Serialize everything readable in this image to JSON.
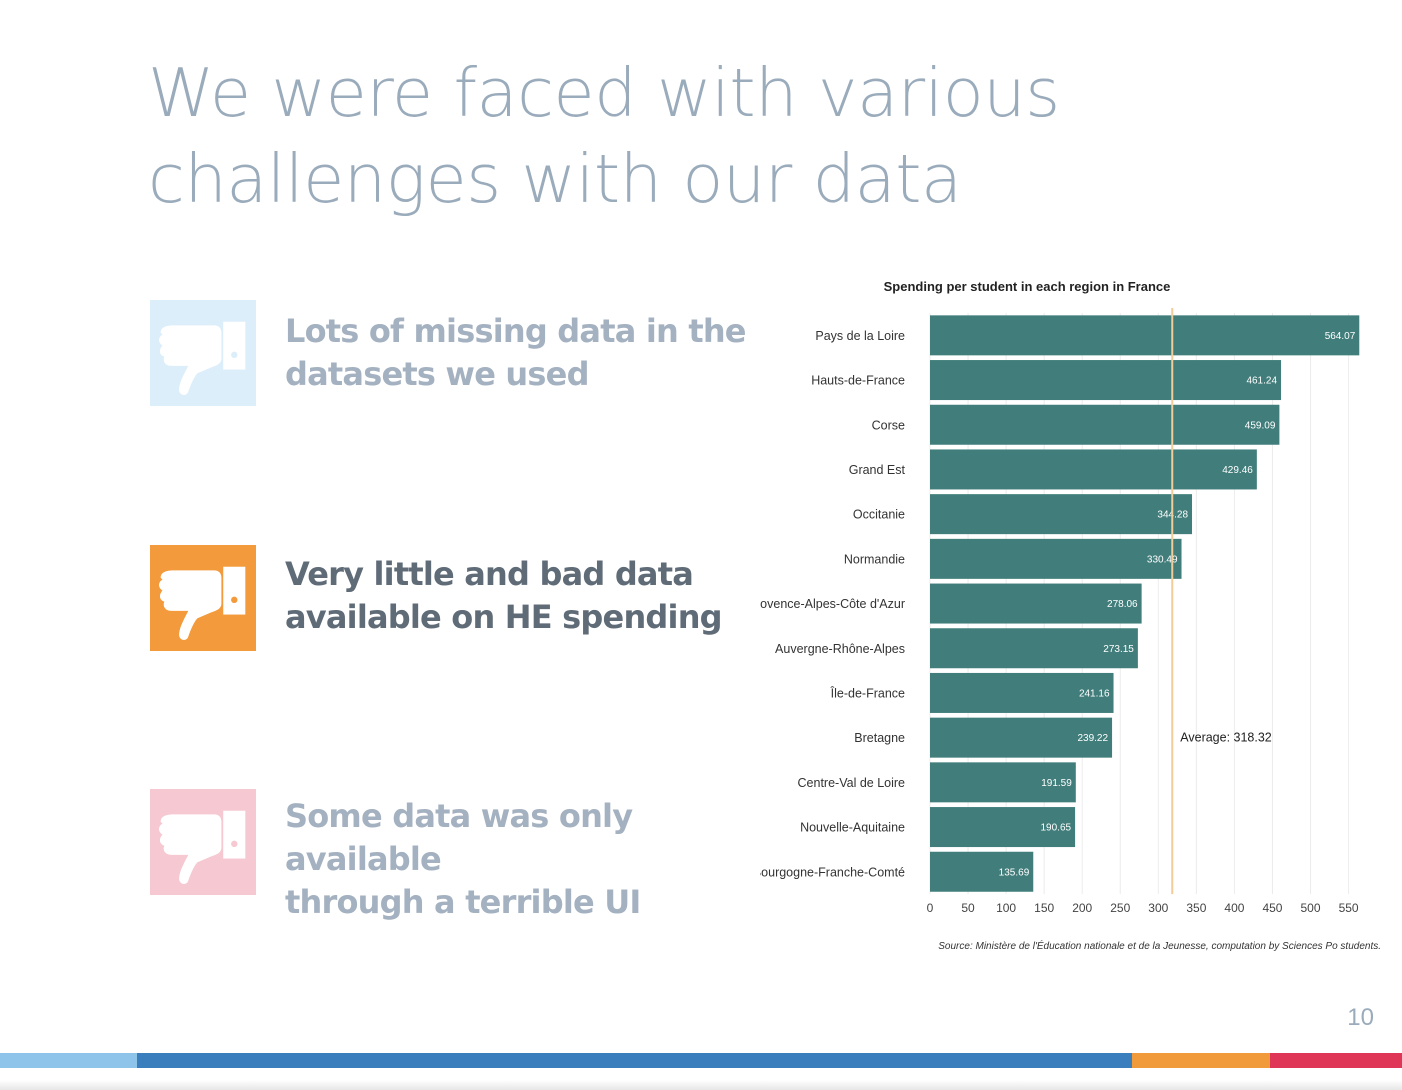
{
  "slide": {
    "title_line1": "We were faced with various",
    "title_line2": "challenges with our data",
    "page_number": "10"
  },
  "points": [
    {
      "text_line1": "Lots of missing data in the",
      "text_line2": "datasets we used",
      "icon": "thumbs-down-icon",
      "box_color": "#ddeefb",
      "text_color": "#a4b1c0"
    },
    {
      "text_line1": "Very little and bad data",
      "text_line2": "available on HE spending",
      "icon": "thumbs-down-icon",
      "box_color": "#f29a3c",
      "text_color": "#5f6b77"
    },
    {
      "text_line1": "Some data was only available",
      "text_line2": "through a terrible UI",
      "icon": "thumbs-down-icon",
      "box_color": "#f6c9d2",
      "text_color": "#a4b1c0"
    }
  ],
  "chart_data": {
    "type": "bar",
    "orientation": "horizontal",
    "title": "Spending per student in each region in France",
    "categories": [
      "Pays de la Loire",
      "Hauts-de-France",
      "Corse",
      "Grand Est",
      "Occitanie",
      "Normandie",
      "Provence-Alpes-Côte d'Azur",
      "Auvergne-Rhône-Alpes",
      "Île-de-France",
      "Bretagne",
      "Centre-Val de Loire",
      "Nouvelle-Aquitaine",
      "Bourgogne-Franche-Comté"
    ],
    "values": [
      564.07,
      461.24,
      459.09,
      429.46,
      344.28,
      330.49,
      278.06,
      273.15,
      241.16,
      239.22,
      191.59,
      190.65,
      135.69
    ],
    "value_labels": [
      "564.07",
      "461.24",
      "459.09",
      "429.46",
      "344.28",
      "330.49",
      "278.06",
      "273.15",
      "241.16",
      "239.22",
      "191.59",
      "190.65",
      "135.69"
    ],
    "xticks": [
      "0",
      "50",
      "100",
      "150",
      "200",
      "250",
      "300",
      "350",
      "400",
      "450",
      "500",
      "550"
    ],
    "xlim": [
      0,
      565
    ],
    "average": 318.32,
    "average_label": "Average: 318.32",
    "source": "Source: Ministère de l'Éducation nationale et de la Jeunesse, computation by Sciences Po students.",
    "bar_color": "#417e7b",
    "average_line_color": "#f2cc99",
    "grid": true
  },
  "footer_colors": [
    "#8ec3ea",
    "#3a7ebe",
    "#f09a3c",
    "#df3556"
  ]
}
